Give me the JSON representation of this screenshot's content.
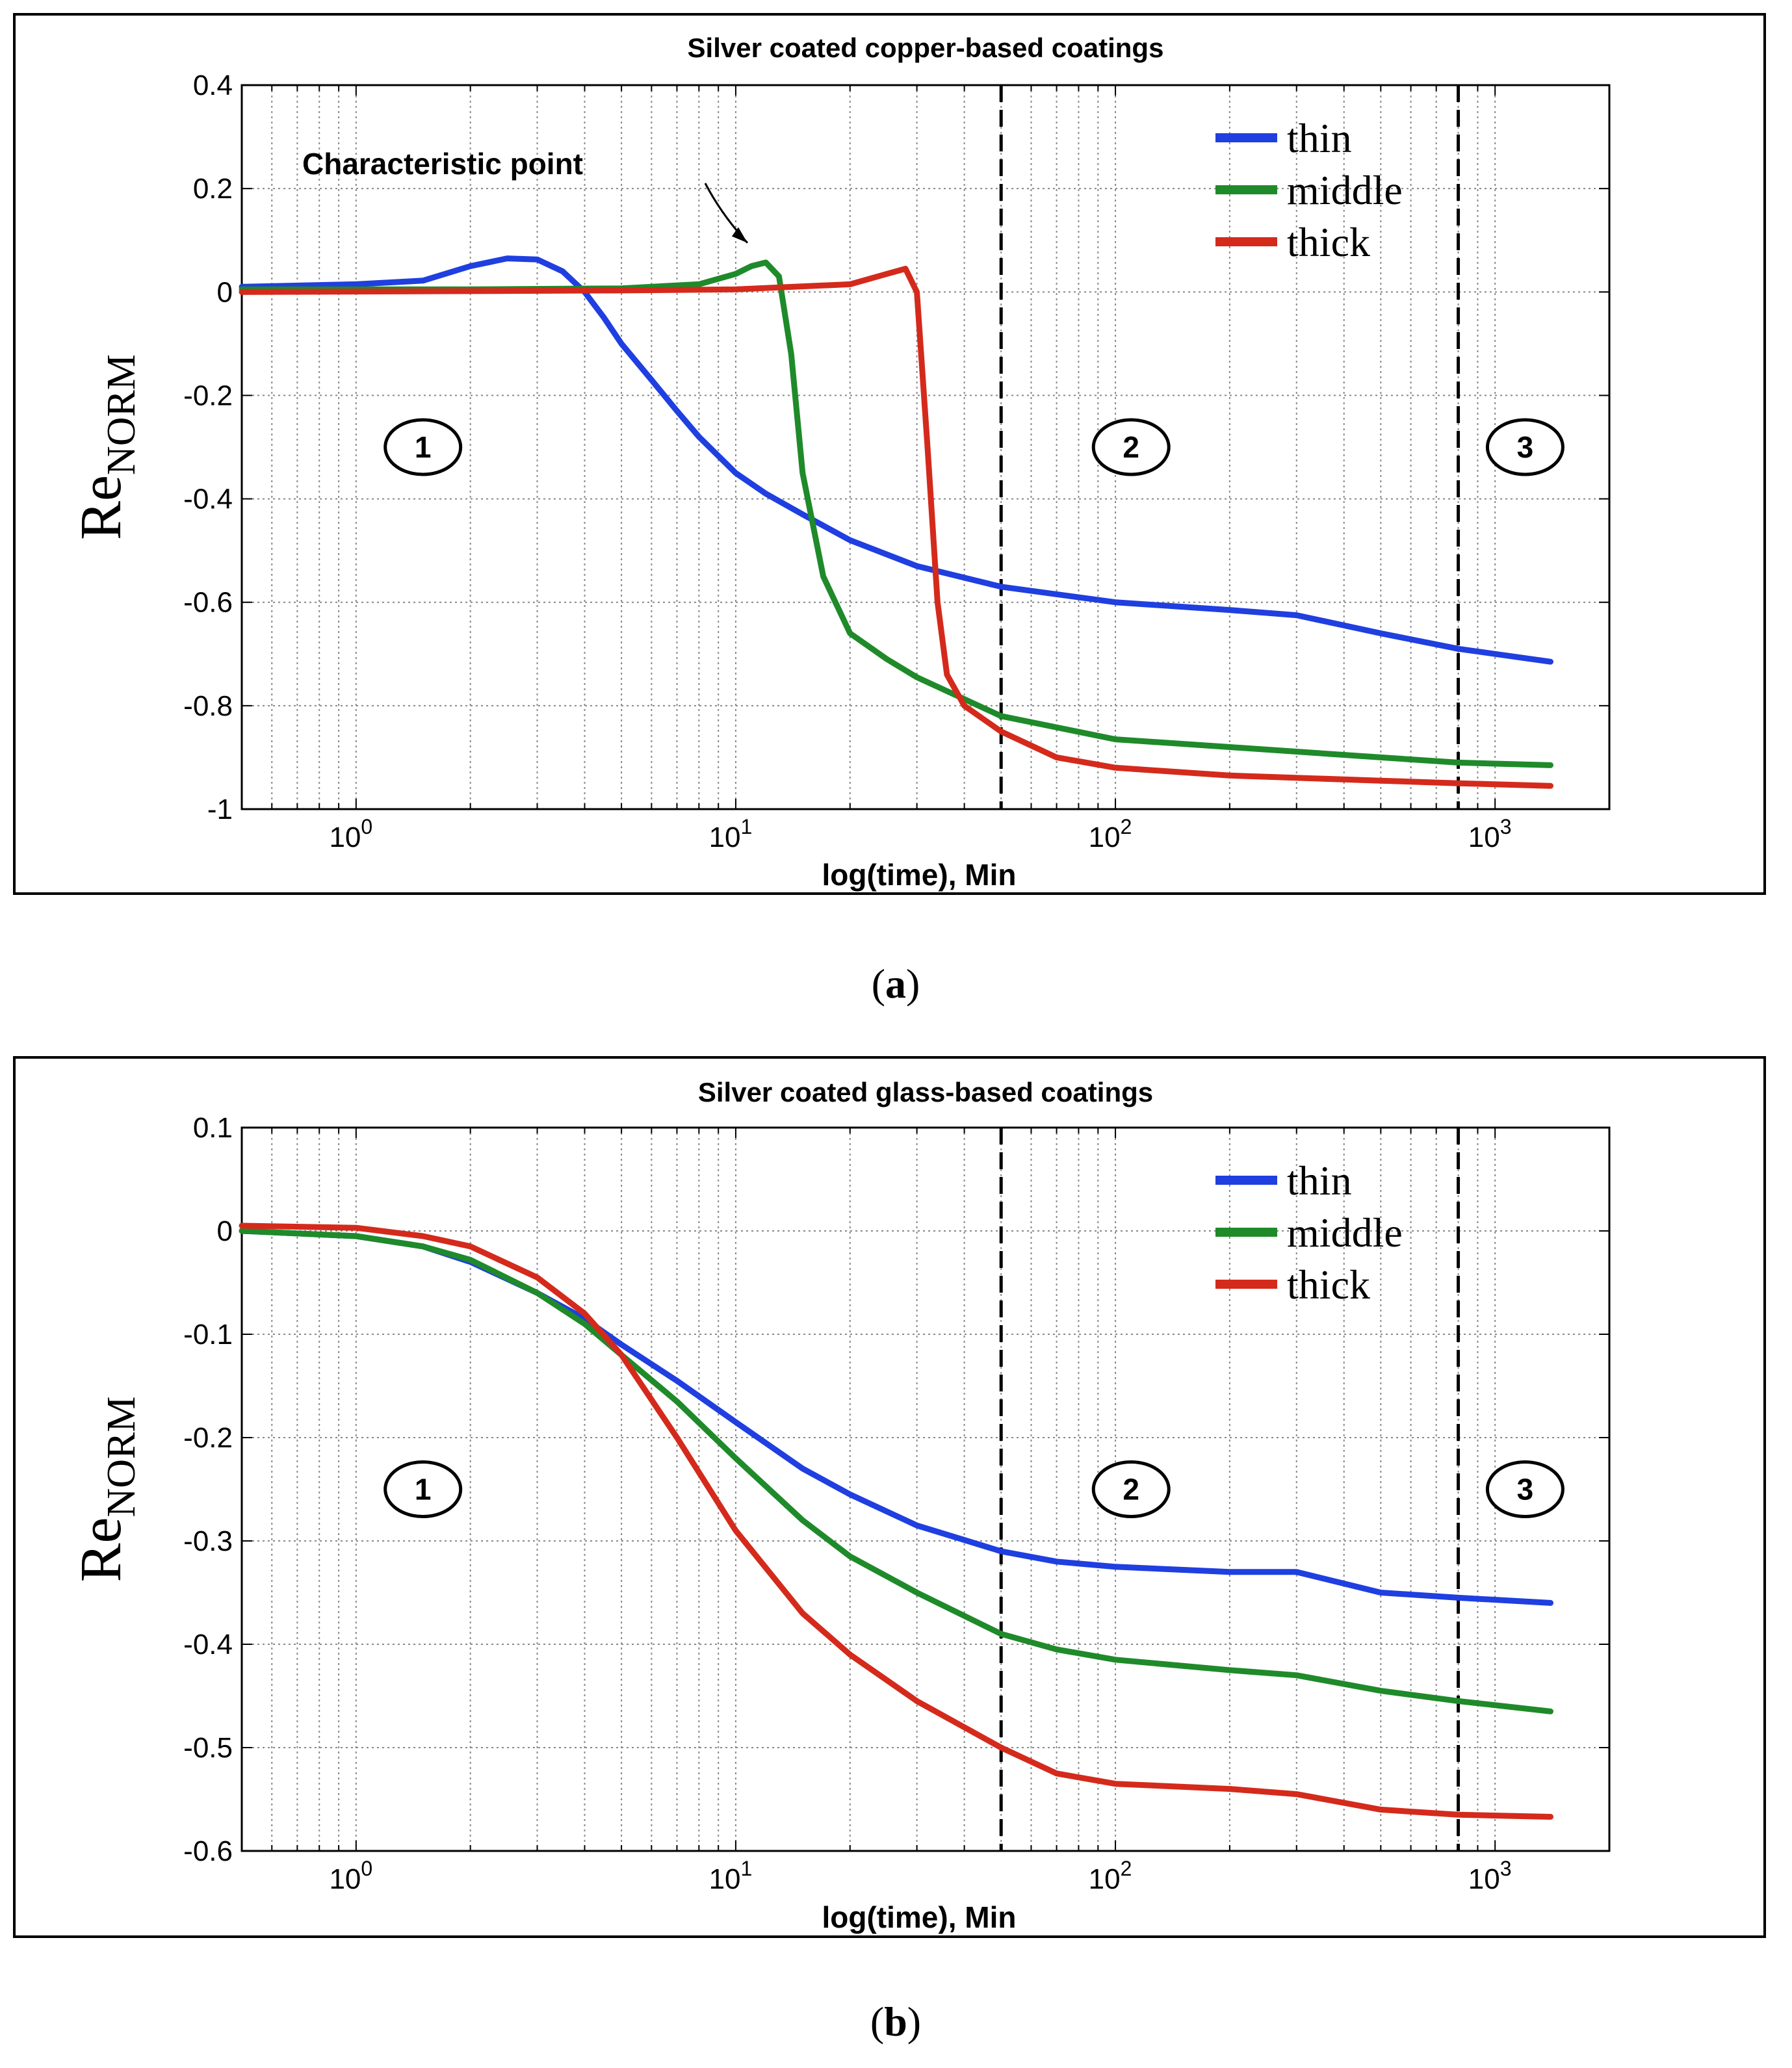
{
  "chart_data": [
    {
      "type": "line",
      "title": "Silver coated copper-based coatings",
      "xlabel": "log(time), Min",
      "ylabel": "Re",
      "ylabel_sub": "NORM",
      "xscale": "log",
      "xlim": [
        0.5,
        2000
      ],
      "ylim": [
        -1,
        0.4
      ],
      "yticks": [
        0.4,
        0.2,
        0,
        -0.2,
        -0.4,
        -0.6,
        -0.8,
        -1
      ],
      "ytick_labels": [
        "0.4",
        "0.2",
        "0",
        "-0.2",
        "-0.4",
        "-0.6",
        "-0.8",
        "-1"
      ],
      "xticks": [
        {
          "base": "10",
          "exp": "0",
          "value": 1
        },
        {
          "base": "10",
          "exp": "1",
          "value": 10
        },
        {
          "base": "10",
          "exp": "2",
          "value": 100
        },
        {
          "base": "10",
          "exp": "3",
          "value": 1000
        }
      ],
      "grid": true,
      "legend_position": "top-right",
      "vlines": [
        50,
        800
      ],
      "regions": [
        {
          "label": "1",
          "x": 1.5,
          "y": -0.3
        },
        {
          "label": "2",
          "x": 110,
          "y": -0.3
        },
        {
          "label": "3",
          "x": 1200,
          "y": -0.3
        }
      ],
      "annotation": {
        "text": "Characteristic point",
        "target_x": 10,
        "target_y": 0.08
      },
      "caption": "(a)",
      "caption_letter": "a",
      "series": [
        {
          "name": "thin",
          "color": "#1f3fe0",
          "x": [
            0.5,
            1,
            1.5,
            2,
            2.5,
            3,
            3.5,
            4,
            4.5,
            5,
            6,
            7,
            8,
            10,
            12,
            15,
            20,
            30,
            50,
            100,
            200,
            300,
            500,
            800,
            1400
          ],
          "y": [
            0.01,
            0.015,
            0.022,
            0.05,
            0.065,
            0.063,
            0.04,
            0.0,
            -0.05,
            -0.1,
            -0.17,
            -0.23,
            -0.28,
            -0.35,
            -0.39,
            -0.43,
            -0.48,
            -0.53,
            -0.57,
            -0.6,
            -0.615,
            -0.625,
            -0.66,
            -0.69,
            -0.715
          ]
        },
        {
          "name": "middle",
          "color": "#1f8a2a",
          "x": [
            0.5,
            2,
            5,
            8,
            10,
            11,
            12,
            13,
            14,
            15,
            17,
            20,
            25,
            30,
            50,
            100,
            200,
            500,
            800,
            1400
          ],
          "y": [
            0.005,
            0.005,
            0.007,
            0.015,
            0.035,
            0.05,
            0.057,
            0.03,
            -0.12,
            -0.35,
            -0.55,
            -0.66,
            -0.71,
            -0.745,
            -0.82,
            -0.865,
            -0.88,
            -0.9,
            -0.91,
            -0.915
          ]
        },
        {
          "name": "thick",
          "color": "#d42a1c",
          "x": [
            0.5,
            5,
            10,
            20,
            25,
            28,
            30,
            32,
            34,
            36,
            40,
            50,
            70,
            100,
            200,
            500,
            800,
            1400
          ],
          "y": [
            0.0,
            0.003,
            0.005,
            0.015,
            0.035,
            0.045,
            0.0,
            -0.3,
            -0.6,
            -0.74,
            -0.8,
            -0.85,
            -0.9,
            -0.92,
            -0.935,
            -0.945,
            -0.95,
            -0.955
          ]
        }
      ]
    },
    {
      "type": "line",
      "title": "Silver coated glass-based coatings",
      "xlabel": "log(time), Min",
      "ylabel": "Re",
      "ylabel_sub": "NORM",
      "xscale": "log",
      "xlim": [
        0.5,
        2000
      ],
      "ylim": [
        -0.6,
        0.1
      ],
      "yticks": [
        0.1,
        0,
        -0.1,
        -0.2,
        -0.3,
        -0.4,
        -0.5,
        -0.6
      ],
      "ytick_labels": [
        "0.1",
        "0",
        "-0.1",
        "-0.2",
        "-0.3",
        "-0.4",
        "-0.5",
        "-0.6"
      ],
      "xticks": [
        {
          "base": "10",
          "exp": "0",
          "value": 1
        },
        {
          "base": "10",
          "exp": "1",
          "value": 10
        },
        {
          "base": "10",
          "exp": "2",
          "value": 100
        },
        {
          "base": "10",
          "exp": "3",
          "value": 1000
        }
      ],
      "grid": true,
      "legend_position": "top-right",
      "vlines": [
        50,
        800
      ],
      "regions": [
        {
          "label": "1",
          "x": 1.5,
          "y": -0.25
        },
        {
          "label": "2",
          "x": 110,
          "y": -0.25
        },
        {
          "label": "3",
          "x": 1200,
          "y": -0.25
        }
      ],
      "caption": "(b)",
      "caption_letter": "b",
      "series": [
        {
          "name": "thin",
          "color": "#1f3fe0",
          "x": [
            0.5,
            1,
            1.5,
            2,
            3,
            4,
            5,
            7,
            10,
            15,
            20,
            30,
            50,
            70,
            100,
            200,
            300,
            500,
            800,
            1400
          ],
          "y": [
            0.0,
            -0.005,
            -0.015,
            -0.03,
            -0.06,
            -0.085,
            -0.11,
            -0.145,
            -0.185,
            -0.23,
            -0.255,
            -0.285,
            -0.31,
            -0.32,
            -0.325,
            -0.33,
            -0.33,
            -0.35,
            -0.355,
            -0.36
          ]
        },
        {
          "name": "middle",
          "color": "#1f8a2a",
          "x": [
            0.5,
            1,
            1.5,
            2,
            3,
            4,
            5,
            7,
            10,
            15,
            20,
            30,
            50,
            70,
            100,
            200,
            300,
            500,
            800,
            1400
          ],
          "y": [
            0.0,
            -0.005,
            -0.015,
            -0.028,
            -0.06,
            -0.09,
            -0.12,
            -0.165,
            -0.22,
            -0.28,
            -0.315,
            -0.35,
            -0.39,
            -0.405,
            -0.415,
            -0.425,
            -0.43,
            -0.445,
            -0.455,
            -0.465
          ]
        },
        {
          "name": "thick",
          "color": "#d42a1c",
          "x": [
            0.5,
            1,
            1.5,
            2,
            3,
            4,
            5,
            7,
            10,
            15,
            20,
            30,
            50,
            70,
            100,
            200,
            300,
            500,
            800,
            1400
          ],
          "y": [
            0.005,
            0.003,
            -0.005,
            -0.015,
            -0.045,
            -0.08,
            -0.12,
            -0.2,
            -0.29,
            -0.37,
            -0.41,
            -0.455,
            -0.5,
            -0.525,
            -0.535,
            -0.54,
            -0.545,
            -0.56,
            -0.565,
            -0.567
          ]
        }
      ]
    }
  ]
}
